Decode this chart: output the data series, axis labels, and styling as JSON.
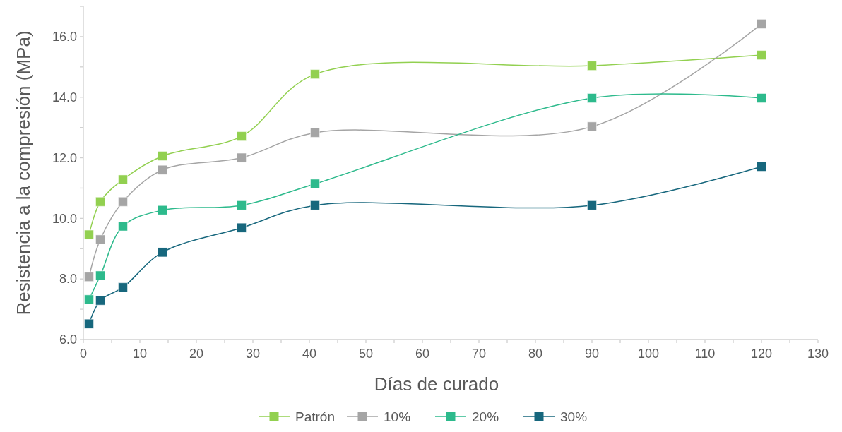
{
  "chart_data": {
    "type": "line",
    "xlabel": "Días de curado",
    "ylabel": "Resistencia a la compresión (MPa)",
    "x": [
      1,
      3,
      7,
      14,
      28,
      41,
      90,
      120
    ],
    "series": [
      {
        "name": "Patrón",
        "color": "#92d050",
        "values": [
          9.46,
          10.55,
          11.28,
          12.06,
          12.71,
          14.76,
          15.04,
          15.39
        ]
      },
      {
        "name": "10%",
        "color": "#a5a5a5",
        "values": [
          8.07,
          9.3,
          10.55,
          11.6,
          12.0,
          12.83,
          13.03,
          16.42
        ]
      },
      {
        "name": "20%",
        "color": "#2dba8c",
        "values": [
          7.32,
          8.11,
          9.74,
          10.27,
          10.43,
          11.14,
          13.97,
          13.97
        ]
      },
      {
        "name": "30%",
        "color": "#17677d",
        "values": [
          6.52,
          7.29,
          7.72,
          8.88,
          9.69,
          10.43,
          10.43,
          11.71
        ]
      }
    ],
    "xlim": [
      0,
      130
    ],
    "xticks": [
      0,
      {
        "value": 5,
        "label": null
      },
      10,
      {
        "value": 15,
        "label": null
      },
      20,
      {
        "value": 25,
        "label": null
      },
      30,
      {
        "value": 35,
        "label": null
      },
      40,
      {
        "value": 45,
        "label": null
      },
      50,
      {
        "value": 55,
        "label": null
      },
      60,
      {
        "value": 65,
        "label": null
      },
      70,
      {
        "value": 75,
        "label": null
      },
      80,
      {
        "value": 85,
        "label": null
      },
      90,
      {
        "value": 95,
        "label": null
      },
      100,
      {
        "value": 105,
        "label": null
      },
      110,
      {
        "value": 115,
        "label": null
      },
      120,
      {
        "value": 125,
        "label": null
      },
      130
    ],
    "ylim": [
      6,
      17
    ],
    "yticks": [
      {
        "value": 6,
        "label": "6.0"
      },
      {
        "value": 7,
        "label": null
      },
      {
        "value": 8,
        "label": "8.0"
      },
      {
        "value": 9,
        "label": null
      },
      {
        "value": 10,
        "label": "10.0"
      },
      {
        "value": 11,
        "label": null
      },
      {
        "value": 12,
        "label": "12.0"
      },
      {
        "value": 13,
        "label": null
      },
      {
        "value": 14,
        "label": "14.0"
      },
      {
        "value": 15,
        "label": null
      },
      {
        "value": 16,
        "label": "16.0"
      },
      {
        "value": 17,
        "label": null
      }
    ],
    "grid": false,
    "legend": "bottom",
    "marker": "square",
    "line_style": "solid"
  }
}
